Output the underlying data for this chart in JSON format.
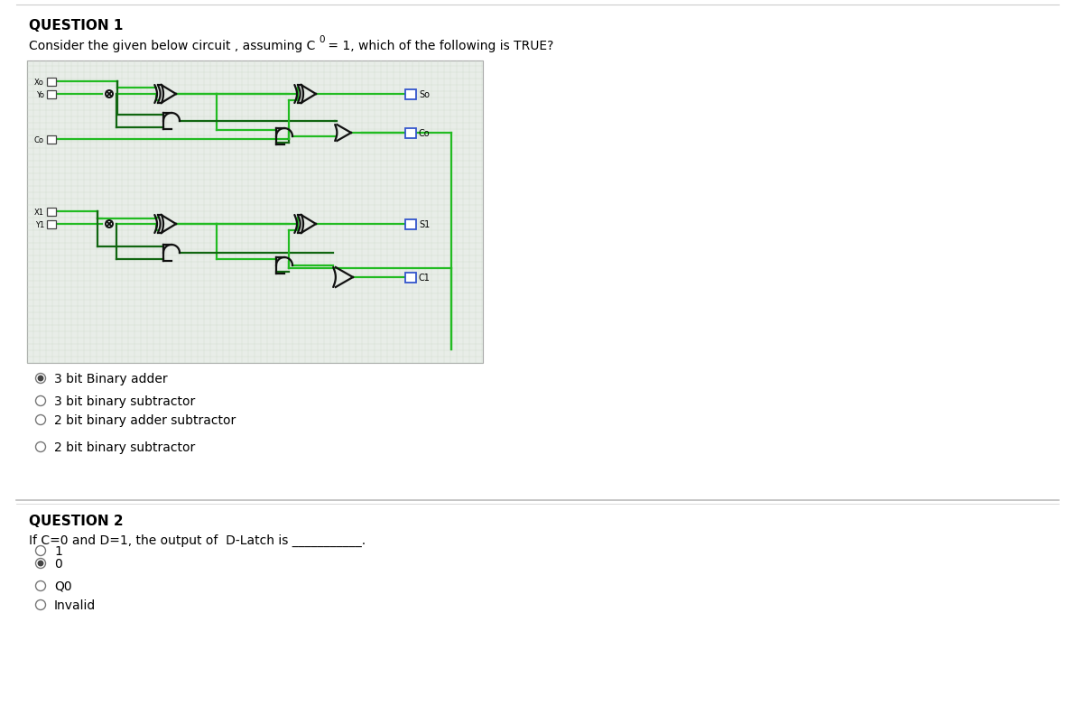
{
  "bg_color": "#ffffff",
  "title1": "QUESTION 1",
  "title2": "QUESTION 2",
  "q1_options": [
    {
      "text": "3 bit Binary adder",
      "selected": true
    },
    {
      "text": "3 bit binary subtractor",
      "selected": false
    },
    {
      "text": "2 bit binary adder subtractor",
      "selected": false
    },
    {
      "text": "2 bit binary subtractor",
      "selected": false
    }
  ],
  "q2_text": "If C=0 and D=1, the output of  D-Latch is ___________.",
  "q2_options": [
    {
      "text": "1",
      "selected": false
    },
    {
      "text": "0",
      "selected": true
    },
    {
      "text": "Q0",
      "selected": false
    },
    {
      "text": "Invalid",
      "selected": false
    }
  ],
  "circuit_bg": "#e8ede8",
  "lc": "#22bb22",
  "lc_dark": "#116611",
  "lw": 1.6,
  "gate_color": "#111111",
  "box_edge_color": "#3355cc"
}
